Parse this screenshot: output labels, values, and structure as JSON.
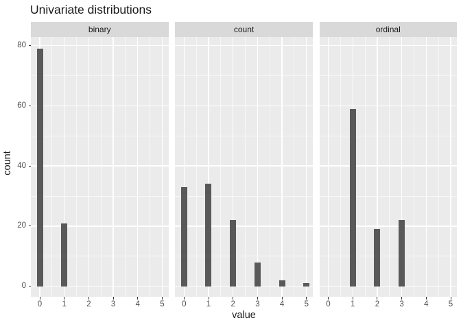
{
  "chart_data": {
    "type": "bar",
    "title": "Univariate distributions",
    "xlabel": "value",
    "ylabel": "count",
    "facet_variable_labels": [
      "binary",
      "count",
      "ordinal"
    ],
    "facets": [
      {
        "label": "binary",
        "x": [
          0,
          1
        ],
        "counts": [
          79,
          21
        ]
      },
      {
        "label": "count",
        "x": [
          0,
          1,
          2,
          3,
          4,
          5
        ],
        "counts": [
          33,
          34,
          22,
          8,
          2,
          1
        ]
      },
      {
        "label": "ordinal",
        "x": [
          1,
          2,
          3
        ],
        "counts": [
          59,
          19,
          22
        ]
      }
    ],
    "x_ticks": [
      0,
      1,
      2,
      3,
      4,
      5
    ],
    "y_ticks": [
      0,
      20,
      40,
      60,
      80
    ],
    "y_grid_minor": [
      10,
      30,
      50,
      70
    ],
    "xlim": [
      -0.5,
      5.5
    ],
    "ylim": [
      0,
      83
    ],
    "grid": true,
    "legend": "none",
    "theme": "ggplot-grey"
  },
  "colors": {
    "background": "#FFFFFF",
    "panel_bg": "#EBEBEB",
    "strip_bg": "#D9D9D9",
    "bar": "#595959",
    "grid_major": "#FFFFFF",
    "grid_minor": "#FFFFFF",
    "tick_mark": "#333333",
    "tick_label": "#4D4D4D",
    "strip_label": "#1A1A1A",
    "title": "#1A1A1A",
    "axis_title": "#1A1A1A"
  }
}
